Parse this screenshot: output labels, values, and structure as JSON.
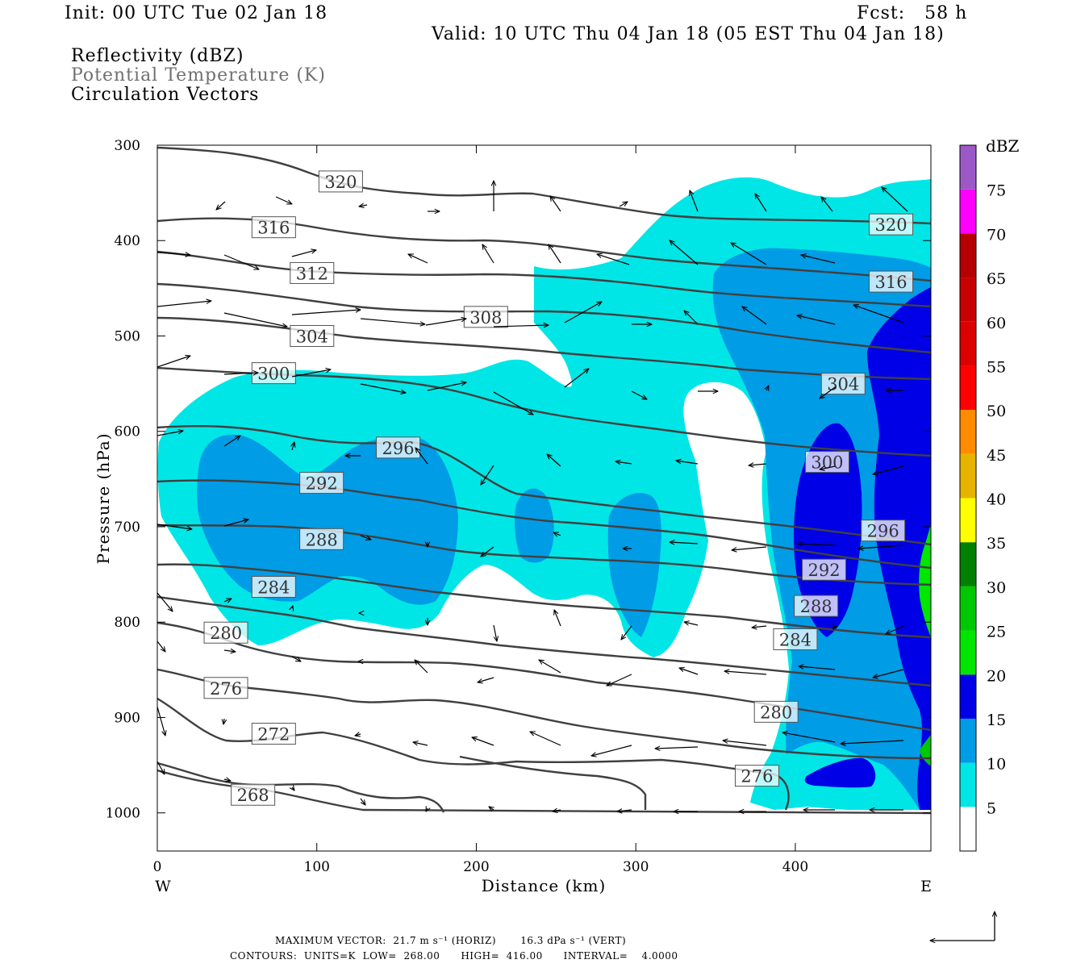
{
  "header": {
    "init": "Init: 00 UTC Tue 02 Jan 18",
    "fcst": "Fcst:   58 h",
    "valid": "Valid: 10 UTC Thu 04 Jan 18 (05 EST Thu 04 Jan 18)"
  },
  "fields": {
    "reflectivity": "Reflectivity (dBZ)",
    "theta": "Potential Temperature (K)",
    "vectors": "Circulation Vectors"
  },
  "footer": {
    "max_vector": "MAXIMUM VECTOR:  21.7 m s⁻¹ (HORIZ)       16.3 dPa s⁻¹ (VERT)",
    "contours": "CONTOURS:  UNITS=K  LOW=  268.00      HIGH=  416.00      INTERVAL=    4.0000"
  },
  "colors": {
    "c5": "#00e6e6",
    "c10": "#009ce6",
    "c15": "#0000e6",
    "c20": "#00e600",
    "c25": "#00c800",
    "c30": "#008000",
    "c35": "#ffff00",
    "c40": "#e6b400",
    "c45": "#ff8c00",
    "c50": "#ff0000",
    "c55": "#dc0000",
    "c60": "#c80000",
    "c65": "#b40000",
    "c70": "#ff00ff",
    "c75": "#9b59c8",
    "contour": "#404040"
  },
  "chart_data": {
    "type": "contour",
    "xlabel": "Distance (km)",
    "ylabel": "Pressure (hPa)",
    "xlim": [
      0,
      485
    ],
    "ylim": [
      300,
      1040
    ],
    "y_scale": "linear, inverted",
    "x_ticks": [
      "0",
      "100",
      "200",
      "300",
      "400"
    ],
    "y_ticks": [
      "300",
      "400",
      "500",
      "600",
      "700",
      "800",
      "900",
      "1000"
    ],
    "x_end_labels": {
      "left": "W",
      "right": "E"
    },
    "colorbar": {
      "title": "dBZ",
      "levels": [
        "5",
        "10",
        "15",
        "20",
        "25",
        "30",
        "35",
        "40",
        "45",
        "50",
        "55",
        "60",
        "65",
        "70",
        "75"
      ]
    },
    "theta_contour_labels": [
      {
        "label": "320",
        "x": 115,
        "p": 338
      },
      {
        "label": "320",
        "x": 460,
        "p": 383
      },
      {
        "label": "316",
        "x": 73,
        "p": 386
      },
      {
        "label": "316",
        "x": 460,
        "p": 443
      },
      {
        "label": "312",
        "x": 97,
        "p": 434
      },
      {
        "label": "308",
        "x": 206,
        "p": 480
      },
      {
        "label": "304",
        "x": 97,
        "p": 500
      },
      {
        "label": "304",
        "x": 430,
        "p": 550
      },
      {
        "label": "300",
        "x": 73,
        "p": 539
      },
      {
        "label": "300",
        "x": 420,
        "p": 632
      },
      {
        "label": "296",
        "x": 151,
        "p": 617
      },
      {
        "label": "296",
        "x": 455,
        "p": 704
      },
      {
        "label": "292",
        "x": 103,
        "p": 654
      },
      {
        "label": "292",
        "x": 418,
        "p": 745
      },
      {
        "label": "288",
        "x": 103,
        "p": 713
      },
      {
        "label": "288",
        "x": 413,
        "p": 783
      },
      {
        "label": "284",
        "x": 73,
        "p": 763
      },
      {
        "label": "284",
        "x": 400,
        "p": 818
      },
      {
        "label": "280",
        "x": 43,
        "p": 811
      },
      {
        "label": "280",
        "x": 388,
        "p": 894
      },
      {
        "label": "276",
        "x": 43,
        "p": 869
      },
      {
        "label": "276",
        "x": 376,
        "p": 961
      },
      {
        "label": "272",
        "x": 73,
        "p": 917
      },
      {
        "label": "268",
        "x": 60,
        "p": 981
      }
    ]
  }
}
